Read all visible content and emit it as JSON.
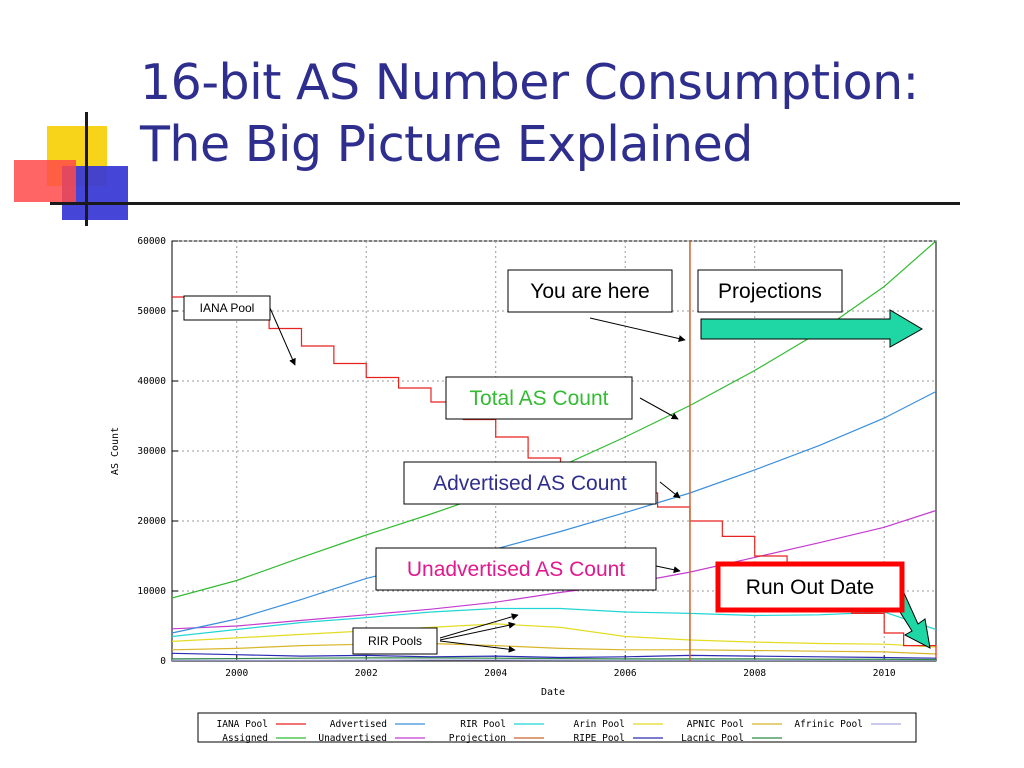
{
  "slide": {
    "title_line1": "16-bit AS Number Consumption:",
    "title_line2": "The Big Picture Explained"
  },
  "colors": {
    "title": "#2e2e8e",
    "iana_pool": "#e8231f",
    "assigned": "#33bb33",
    "advertised": "#3b8fd9",
    "unadvertised": "#c43ccf",
    "rir_pool": "#22d5d5",
    "projection": "#c7652c",
    "arin_pool": "#e3dc22",
    "ripe_pool": "#2b2bb3",
    "apnic_pool": "#d8b52a",
    "lacnic_pool": "#2f8a48",
    "afrinic_pool": "#a9a9e3",
    "arrow_fill": "#1ed7a5",
    "run_out_border": "#ff0000"
  },
  "chart_data": {
    "type": "line",
    "xlabel": "Date",
    "ylabel": "AS Count",
    "xlim": [
      1999,
      2010.8
    ],
    "ylim": [
      0,
      60000
    ],
    "x_ticks": [
      2000,
      2002,
      2004,
      2006,
      2008,
      2010
    ],
    "y_ticks": [
      0,
      10000,
      20000,
      30000,
      40000,
      50000,
      60000
    ],
    "grid": true,
    "current_date": 2007.0,
    "legend_position": "bottom",
    "legend": [
      [
        "IANA Pool",
        "Advertised",
        "RIR Pool",
        "Arin Pool",
        "APNIC Pool",
        "Afrinic Pool"
      ],
      [
        "Assigned",
        "Unadvertised",
        "Projection",
        "RIPE Pool",
        "Lacnic Pool"
      ]
    ],
    "series": [
      {
        "name": "Assigned",
        "x": [
          1999,
          2000,
          2001,
          2002,
          2003,
          2004,
          2005,
          2006,
          2007,
          2008,
          2009,
          2010,
          2010.8
        ],
        "values": [
          9000,
          11500,
          14800,
          18000,
          21000,
          24200,
          27800,
          32000,
          36500,
          41500,
          47000,
          53500,
          60000
        ]
      },
      {
        "name": "Advertised",
        "x": [
          1999,
          2000,
          2001,
          2002,
          2003,
          2004,
          2005,
          2006,
          2007,
          2008,
          2009,
          2010,
          2010.8
        ],
        "values": [
          4000,
          6000,
          8800,
          11800,
          14000,
          16000,
          18500,
          21200,
          24000,
          27300,
          30800,
          34700,
          38500
        ]
      },
      {
        "name": "Unadvertised",
        "x": [
          1999,
          2000,
          2001,
          2002,
          2003,
          2004,
          2005,
          2006,
          2007,
          2008,
          2009,
          2010,
          2010.8
        ],
        "values": [
          4600,
          5000,
          5800,
          6600,
          7400,
          8400,
          9800,
          11000,
          12700,
          14800,
          16900,
          19100,
          21500
        ]
      },
      {
        "name": "IANA Pool",
        "x": [
          1999,
          1999.5,
          2000,
          2000.5,
          2001,
          2001.5,
          2002,
          2002.5,
          2003,
          2003.5,
          2004,
          2004.5,
          2005,
          2005.5,
          2006,
          2006.5,
          2007,
          2007.5,
          2008,
          2008.5,
          2009,
          2009.5,
          2010,
          2010.3,
          2010.8
        ],
        "values": [
          52000,
          50800,
          49500,
          47500,
          45000,
          42500,
          40500,
          39000,
          37000,
          34500,
          32000,
          29000,
          28000,
          26500,
          24000,
          22000,
          20000,
          17800,
          15000,
          12500,
          10000,
          6800,
          4000,
          2200,
          400
        ]
      },
      {
        "name": "RIR Pool",
        "x": [
          1999,
          2000,
          2001,
          2002,
          2003,
          2004,
          2005,
          2006,
          2007,
          2008,
          2009,
          2010,
          2010.8
        ],
        "values": [
          3500,
          4500,
          5500,
          6200,
          7000,
          7500,
          7500,
          7000,
          6800,
          6500,
          6600,
          7000,
          4500
        ]
      },
      {
        "name": "Arin Pool",
        "x": [
          1999,
          2000,
          2001,
          2002,
          2003,
          2004,
          2005,
          2006,
          2007,
          2008,
          2009,
          2010,
          2010.8
        ],
        "values": [
          2800,
          3300,
          3800,
          4300,
          4800,
          5300,
          4800,
          3500,
          3000,
          2700,
          2500,
          2400,
          2000
        ]
      },
      {
        "name": "APNIC Pool",
        "x": [
          1999,
          2000,
          2001,
          2002,
          2003,
          2004,
          2005,
          2006,
          2007,
          2008,
          2009,
          2010,
          2010.8
        ],
        "values": [
          1600,
          1800,
          2200,
          2400,
          2500,
          2200,
          1800,
          1600,
          1600,
          1500,
          1400,
          1300,
          1000
        ]
      },
      {
        "name": "RIPE Pool",
        "x": [
          1999,
          2000,
          2001,
          2002,
          2003,
          2004,
          2005,
          2006,
          2007,
          2008,
          2009,
          2010,
          2010.8
        ],
        "values": [
          1100,
          900,
          700,
          800,
          600,
          700,
          500,
          600,
          800,
          700,
          600,
          500,
          400
        ]
      },
      {
        "name": "Lacnic Pool",
        "x": [
          1999,
          2000,
          2001,
          2002,
          2003,
          2004,
          2005,
          2006,
          2007,
          2008,
          2009,
          2010,
          2010.8
        ],
        "values": [
          300,
          350,
          400,
          450,
          450,
          400,
          350,
          300,
          300,
          300,
          250,
          250,
          200
        ]
      },
      {
        "name": "Afrinic Pool",
        "x": [
          1999,
          2000,
          2001,
          2002,
          2003,
          2004,
          2005,
          2006,
          2007,
          2008,
          2009,
          2010,
          2010.8
        ],
        "values": [
          100,
          100,
          100,
          120,
          150,
          150,
          120,
          100,
          100,
          100,
          100,
          100,
          100
        ]
      }
    ],
    "annotations": {
      "iana_pool": "IANA Pool",
      "you_are_here": "You are here",
      "projections": "Projections",
      "total_as_count": "Total AS Count",
      "advertised_as_count": "Advertised AS Count",
      "unadvertised_as_count": "Unadvertised AS Count",
      "run_out_date": "Run Out Date",
      "rir_pools": "RIR Pools"
    }
  }
}
